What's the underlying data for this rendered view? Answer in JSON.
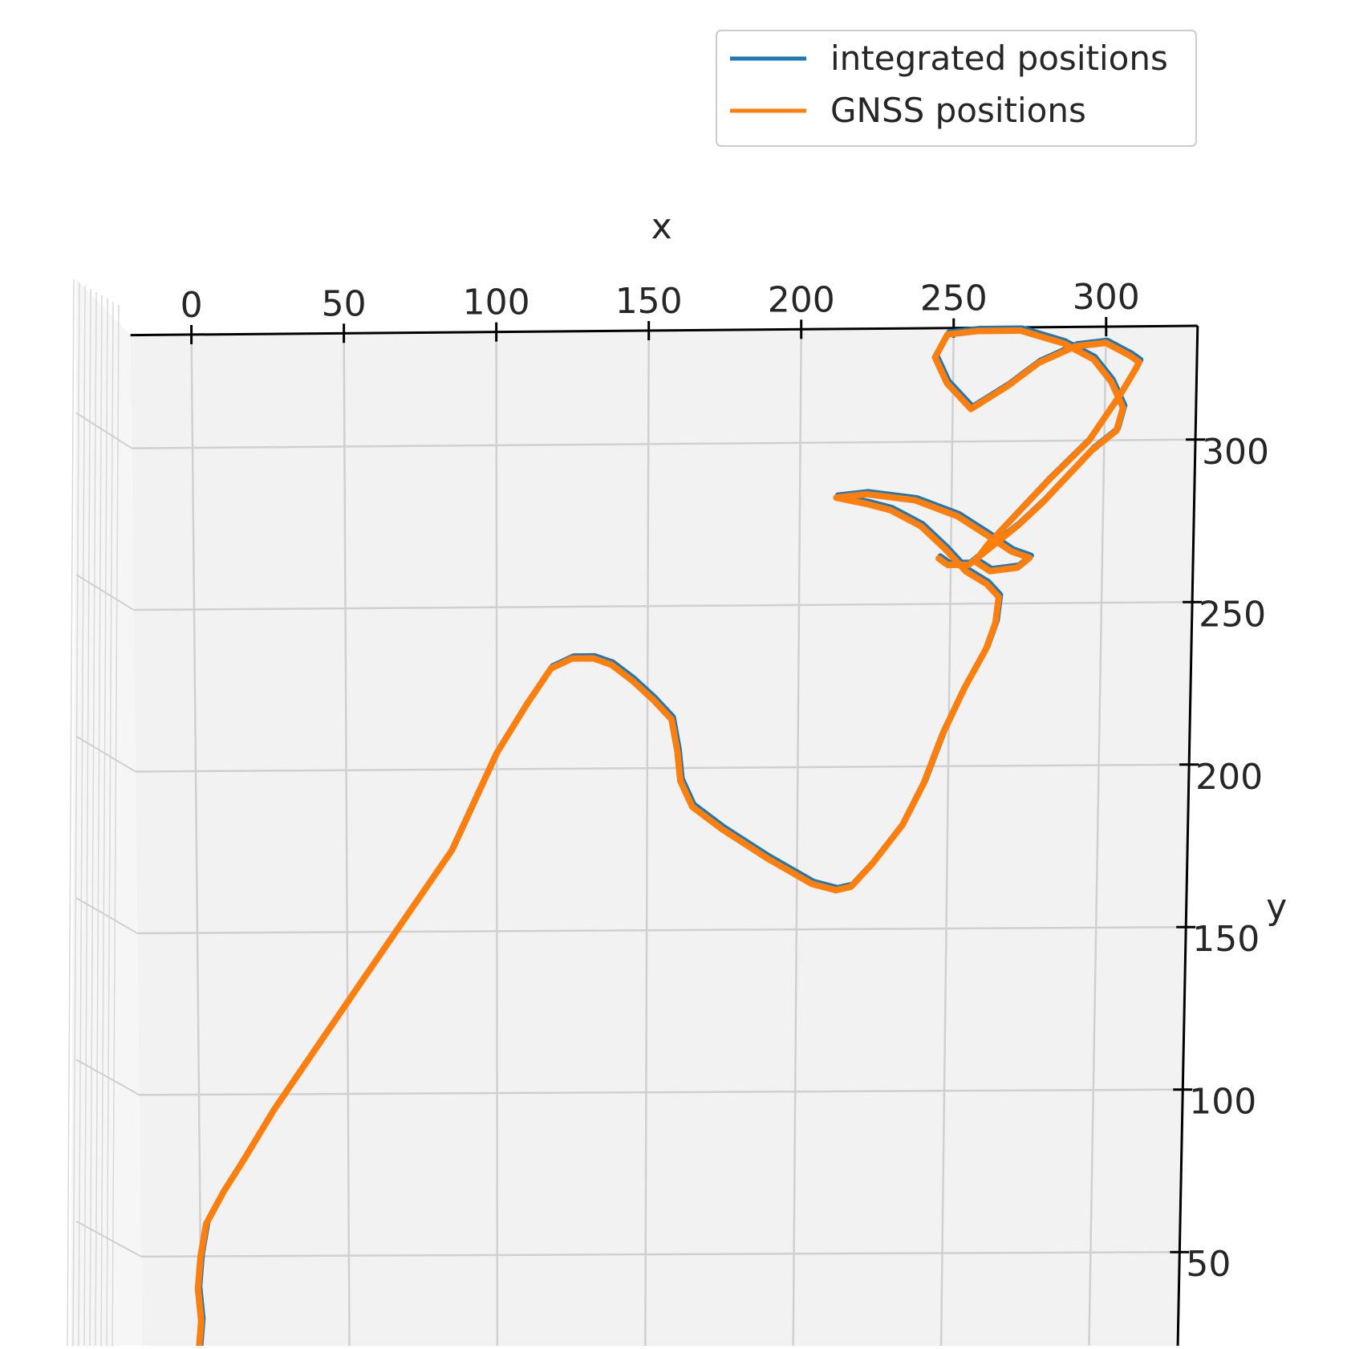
{
  "chart_data": {
    "type": "line",
    "title": "",
    "xlabel": "x",
    "ylabel": "y",
    "xlim": [
      -20,
      330
    ],
    "ylim": [
      20,
      335
    ],
    "x_ticks": [
      0,
      50,
      100,
      150,
      200,
      250,
      300
    ],
    "y_ticks": [
      50,
      100,
      150,
      200,
      250,
      300
    ],
    "grid": true,
    "projection": "3d",
    "legend_placement": "top-right",
    "series": [
      {
        "name": "integrated positions",
        "color": "#1f77b4",
        "x": [
          -1,
          0,
          -1,
          0,
          2,
          8,
          15,
          25,
          40,
          55,
          70,
          85,
          95,
          100,
          110,
          118,
          125,
          132,
          138,
          145,
          152,
          158,
          160,
          161,
          165,
          175,
          190,
          205,
          213,
          218,
          225,
          235,
          242,
          248,
          255,
          262,
          265,
          266,
          262,
          255,
          248,
          240,
          230,
          222,
          212,
          222,
          238,
          252,
          262,
          270,
          276,
          272,
          263,
          258,
          262,
          270,
          282,
          295,
          305,
          310,
          311,
          308,
          300,
          290,
          278,
          268,
          256,
          248,
          244,
          248,
          258,
          272,
          286,
          296,
          302,
          306,
          304,
          296,
          288,
          280,
          272,
          264,
          256,
          249,
          246
        ],
        "y": [
          20,
          30,
          40,
          50,
          60,
          70,
          80,
          95,
          115,
          135,
          155,
          175,
          195,
          205,
          220,
          231,
          234,
          234,
          232,
          227,
          221,
          215,
          205,
          196,
          188,
          181,
          172,
          164,
          162,
          163,
          170,
          182,
          195,
          210,
          224,
          236,
          244,
          252,
          256,
          260,
          267,
          274,
          279,
          281,
          283,
          284,
          282,
          277,
          271,
          266,
          264,
          261,
          260,
          263,
          268,
          276,
          288,
          300,
          314,
          322,
          324,
          326,
          330,
          329,
          324,
          317,
          310,
          318,
          326,
          333,
          334,
          334,
          330,
          325,
          318,
          310,
          303,
          297,
          289,
          281,
          274,
          268,
          262,
          262,
          264
        ]
      },
      {
        "name": "GNSS positions",
        "color": "#ff7f0e",
        "x": [
          -1,
          0,
          -1,
          0,
          2,
          8,
          15,
          25,
          40,
          55,
          70,
          85,
          95,
          100,
          110,
          118,
          125,
          132,
          138,
          145,
          152,
          158,
          160,
          161,
          165,
          175,
          190,
          205,
          213,
          218,
          225,
          235,
          242,
          248,
          255,
          262,
          265,
          266,
          262,
          255,
          248,
          240,
          230,
          222,
          212,
          222,
          238,
          252,
          262,
          270,
          276,
          272,
          263,
          258,
          262,
          270,
          282,
          295,
          305,
          310,
          311,
          308,
          300,
          290,
          278,
          268,
          256,
          248,
          244,
          248,
          258,
          272,
          286,
          296,
          302,
          306,
          304,
          296,
          288,
          280,
          272,
          264,
          256,
          249,
          246
        ],
        "y": [
          20,
          30,
          40,
          50,
          60,
          70,
          80,
          95,
          115,
          135,
          155,
          175,
          195,
          205,
          220,
          231,
          234,
          234,
          232,
          227,
          221,
          215,
          205,
          196,
          188,
          181,
          172,
          164,
          162,
          163,
          170,
          182,
          195,
          210,
          224,
          236,
          244,
          252,
          256,
          260,
          267,
          274,
          279,
          281,
          283,
          284,
          282,
          277,
          271,
          266,
          264,
          261,
          260,
          263,
          268,
          276,
          288,
          300,
          314,
          322,
          324,
          326,
          330,
          329,
          324,
          317,
          310,
          318,
          326,
          333,
          334,
          334,
          330,
          325,
          318,
          310,
          303,
          297,
          289,
          281,
          274,
          268,
          262,
          262,
          264
        ]
      }
    ]
  }
}
